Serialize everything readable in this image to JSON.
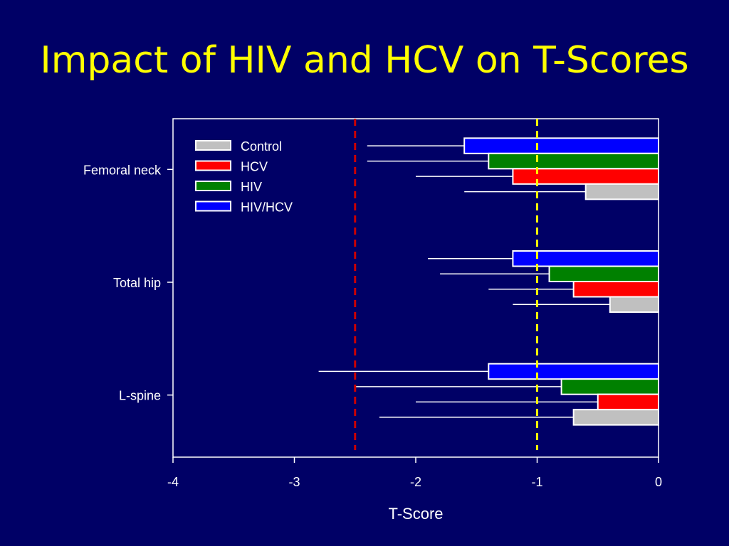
{
  "slide": {
    "title": "Impact of HIV and HCV on T-Scores"
  },
  "chart_data": {
    "type": "bar",
    "orientation": "horizontal",
    "title": "Impact of HIV and HCV on T-Scores",
    "xlabel": "T-Score",
    "ylabel": "",
    "xlim": [
      -4,
      0
    ],
    "xticks": [
      -4,
      -3,
      -2,
      -1,
      0
    ],
    "categories": [
      "Femoral neck",
      "Total hip",
      "L-spine"
    ],
    "series": [
      {
        "name": "HIV/HCV",
        "color": "#0000ff",
        "values": [
          -1.6,
          -1.2,
          -1.4
        ],
        "error_low": [
          -2.4,
          -1.9,
          -2.8
        ]
      },
      {
        "name": "HIV",
        "color": "#008000",
        "values": [
          -1.4,
          -0.9,
          -0.8
        ],
        "error_low": [
          -2.4,
          -1.8,
          -2.5
        ]
      },
      {
        "name": "HCV",
        "color": "#ff0000",
        "values": [
          -1.2,
          -0.7,
          -0.5
        ],
        "error_low": [
          -2.0,
          -1.4,
          -2.0
        ]
      },
      {
        "name": "Control",
        "color": "#c0c0c0",
        "values": [
          -0.6,
          -0.4,
          -0.7
        ],
        "error_low": [
          -1.6,
          -1.2,
          -2.3
        ]
      }
    ],
    "legend_order": [
      "Control",
      "HCV",
      "HIV",
      "HIV/HCV"
    ],
    "legend_position": "top-left",
    "reference_lines": [
      {
        "x": -2.5,
        "color": "#cc0000",
        "style": "dashed"
      },
      {
        "x": -1.0,
        "color": "#ffff00",
        "style": "dashed"
      }
    ],
    "grid": false
  }
}
